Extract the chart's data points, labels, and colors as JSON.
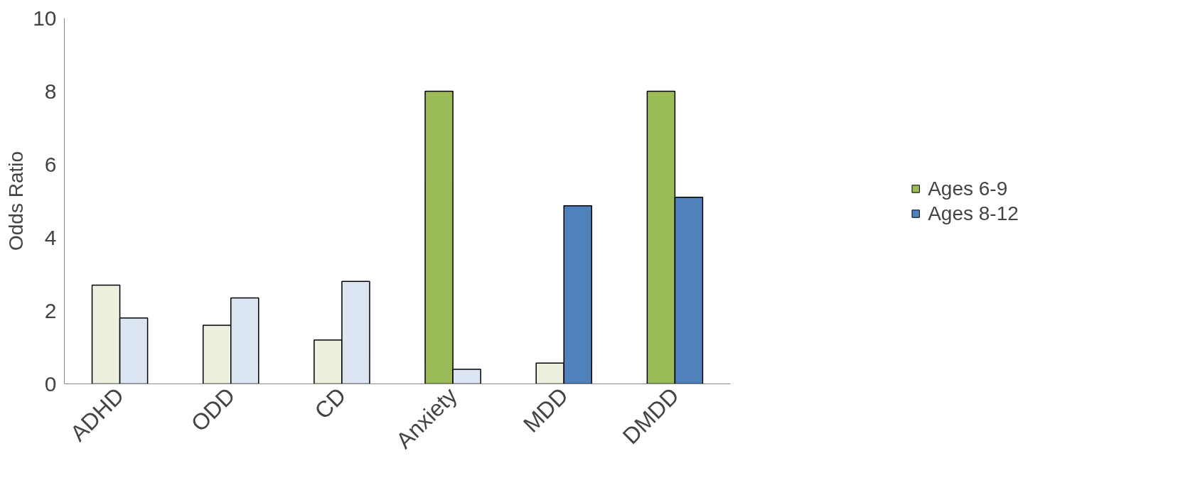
{
  "chart_data": {
    "type": "bar",
    "ylabel": "Odds Ratio",
    "categories": [
      "ADHD",
      "ODD",
      "CD",
      "Anxiety",
      "MDD",
      "DMDD"
    ],
    "series": [
      {
        "name": "Ages 6-9",
        "color": "#9bbb59",
        "colors": [
          "#ebf1de",
          "#ebf1de",
          "#ebf1de",
          "#9bbb59",
          "#ebf1de",
          "#9bbb59"
        ],
        "values": [
          2.7,
          1.6,
          1.2,
          8.0,
          0.57,
          8.0
        ]
      },
      {
        "name": "Ages 8-12",
        "color": "#4f81bd",
        "colors": [
          "#dce6f2",
          "#dce6f2",
          "#dce6f2",
          "#dce6f2",
          "#4f81bd",
          "#4f81bd"
        ],
        "values": [
          1.8,
          2.35,
          2.8,
          0.4,
          4.87,
          5.1
        ]
      }
    ],
    "ylim": [
      0,
      10
    ],
    "yticks": [
      0,
      2,
      4,
      6,
      8,
      10
    ],
    "grid": false,
    "legend": "right"
  }
}
